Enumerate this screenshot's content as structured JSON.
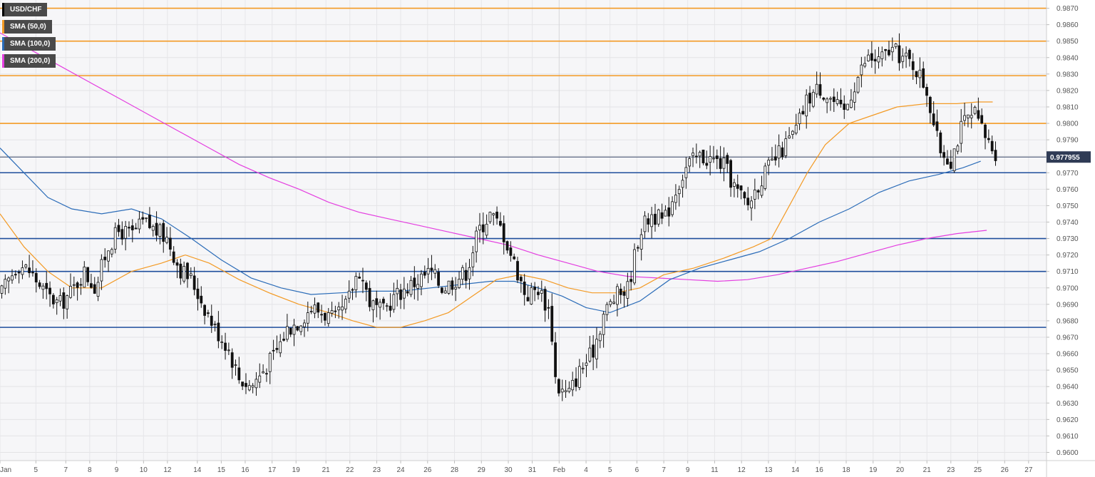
{
  "legend": {
    "items": [
      {
        "label": "USD/CHF",
        "color": "#000000"
      },
      {
        "label": "SMA (50,0)",
        "color": "#f39a24"
      },
      {
        "label": "SMA (100,0)",
        "color": "#2b6cb8"
      },
      {
        "label": "SMA (200,0)",
        "color": "#e43ee0"
      }
    ]
  },
  "chart_data": {
    "type": "candlestick",
    "symbol": "USD/CHF",
    "ylim": [
      0.9595,
      0.9875
    ],
    "y_ticks": [
      "0.9600",
      "0.9610",
      "0.9620",
      "0.9630",
      "0.9640",
      "0.9650",
      "0.9660",
      "0.9670",
      "0.9680",
      "0.9690",
      "0.9700",
      "0.9710",
      "0.9720",
      "0.9730",
      "0.9740",
      "0.9750",
      "0.9760",
      "0.9770",
      "0.9780",
      "0.9790",
      "0.9800",
      "0.9810",
      "0.9820",
      "0.9830",
      "0.9840",
      "0.9850",
      "0.9860",
      "0.9870"
    ],
    "x_ticks": [
      {
        "label": "Jan",
        "pos": 0
      },
      {
        "label": "5",
        "pos": 12
      },
      {
        "label": "7",
        "pos": 22
      },
      {
        "label": "8",
        "pos": 30
      },
      {
        "label": "9",
        "pos": 39
      },
      {
        "label": "10",
        "pos": 48
      },
      {
        "label": "12",
        "pos": 56
      },
      {
        "label": "14",
        "pos": 66
      },
      {
        "label": "15",
        "pos": 74
      },
      {
        "label": "16",
        "pos": 82
      },
      {
        "label": "17",
        "pos": 91
      },
      {
        "label": "19",
        "pos": 99
      },
      {
        "label": "21",
        "pos": 109
      },
      {
        "label": "22",
        "pos": 117
      },
      {
        "label": "23",
        "pos": 126
      },
      {
        "label": "24",
        "pos": 134
      },
      {
        "label": "26",
        "pos": 143
      },
      {
        "label": "28",
        "pos": 152
      },
      {
        "label": "29",
        "pos": 161
      },
      {
        "label": "30",
        "pos": 170
      },
      {
        "label": "31",
        "pos": 178
      },
      {
        "label": "Feb",
        "pos": 187
      },
      {
        "label": "4",
        "pos": 196
      },
      {
        "label": "5",
        "pos": 204
      },
      {
        "label": "6",
        "pos": 213
      },
      {
        "label": "7",
        "pos": 222
      },
      {
        "label": "9",
        "pos": 230
      },
      {
        "label": "11",
        "pos": 239
      },
      {
        "label": "12",
        "pos": 248
      },
      {
        "label": "13",
        "pos": 257
      },
      {
        "label": "14",
        "pos": 266
      },
      {
        "label": "16",
        "pos": 274
      },
      {
        "label": "18",
        "pos": 283
      },
      {
        "label": "19",
        "pos": 292
      },
      {
        "label": "20",
        "pos": 301
      },
      {
        "label": "21",
        "pos": 310
      },
      {
        "label": "23",
        "pos": 318
      },
      {
        "label": "25",
        "pos": 327
      },
      {
        "label": "26",
        "pos": 336
      },
      {
        "label": "27",
        "pos": 344
      }
    ],
    "x_max": 350,
    "current_price": 0.977955,
    "current_price_label": "0.977955",
    "levels": [
      {
        "value": 0.987,
        "color": "#f39a24"
      },
      {
        "value": 0.985,
        "color": "#f39a24"
      },
      {
        "value": 0.9829,
        "color": "#f39a24"
      },
      {
        "value": 0.98,
        "color": "#f39a24"
      },
      {
        "value": 0.977,
        "color": "#1f4e9c"
      },
      {
        "value": 0.973,
        "color": "#1f4e9c"
      },
      {
        "value": 0.971,
        "color": "#1f4e9c"
      },
      {
        "value": 0.9676,
        "color": "#1f4e9c"
      }
    ],
    "close_path": [
      [
        0,
        0.9695
      ],
      [
        6,
        0.9715
      ],
      [
        10,
        0.971
      ],
      [
        16,
        0.9695
      ],
      [
        20,
        0.969
      ],
      [
        24,
        0.9698
      ],
      [
        28,
        0.971
      ],
      [
        32,
        0.97
      ],
      [
        36,
        0.9725
      ],
      [
        40,
        0.9735
      ],
      [
        44,
        0.9732
      ],
      [
        48,
        0.974
      ],
      [
        52,
        0.9735
      ],
      [
        56,
        0.973
      ],
      [
        60,
        0.9712
      ],
      [
        64,
        0.9705
      ],
      [
        68,
        0.969
      ],
      [
        72,
        0.9675
      ],
      [
        76,
        0.9665
      ],
      [
        80,
        0.9645
      ],
      [
        84,
        0.964
      ],
      [
        88,
        0.965
      ],
      [
        92,
        0.966
      ],
      [
        96,
        0.9675
      ],
      [
        100,
        0.968
      ],
      [
        104,
        0.9688
      ],
      [
        108,
        0.9685
      ],
      [
        112,
        0.968
      ],
      [
        116,
        0.969
      ],
      [
        120,
        0.9712
      ],
      [
        124,
        0.969
      ],
      [
        128,
        0.9685
      ],
      [
        132,
        0.9695
      ],
      [
        136,
        0.97
      ],
      [
        140,
        0.9705
      ],
      [
        144,
        0.971
      ],
      [
        148,
        0.97
      ],
      [
        152,
        0.9705
      ],
      [
        156,
        0.971
      ],
      [
        160,
        0.9735
      ],
      [
        164,
        0.9745
      ],
      [
        168,
        0.9735
      ],
      [
        172,
        0.9715
      ],
      [
        176,
        0.9695
      ],
      [
        180,
        0.97
      ],
      [
        184,
        0.9685
      ],
      [
        186,
        0.964
      ],
      [
        190,
        0.9635
      ],
      [
        194,
        0.965
      ],
      [
        198,
        0.966
      ],
      [
        202,
        0.9685
      ],
      [
        206,
        0.9695
      ],
      [
        210,
        0.97
      ],
      [
        214,
        0.9735
      ],
      [
        218,
        0.9745
      ],
      [
        222,
        0.974
      ],
      [
        226,
        0.976
      ],
      [
        230,
        0.9775
      ],
      [
        234,
        0.978
      ],
      [
        238,
        0.9778
      ],
      [
        242,
        0.9775
      ],
      [
        246,
        0.976
      ],
      [
        250,
        0.975
      ],
      [
        254,
        0.9765
      ],
      [
        258,
        0.9775
      ],
      [
        262,
        0.9785
      ],
      [
        266,
        0.9795
      ],
      [
        270,
        0.9815
      ],
      [
        274,
        0.9822
      ],
      [
        278,
        0.9815
      ],
      [
        282,
        0.9805
      ],
      [
        286,
        0.9825
      ],
      [
        290,
        0.984
      ],
      [
        294,
        0.9838
      ],
      [
        298,
        0.9845
      ],
      [
        302,
        0.984
      ],
      [
        306,
        0.9835
      ],
      [
        310,
        0.982
      ],
      [
        314,
        0.9785
      ],
      [
        318,
        0.9778
      ],
      [
        322,
        0.98
      ],
      [
        326,
        0.9805
      ],
      [
        330,
        0.979
      ],
      [
        334,
        0.978
      ]
    ],
    "sma50": [
      [
        0,
        0.9745
      ],
      [
        8,
        0.9725
      ],
      [
        16,
        0.971
      ],
      [
        24,
        0.97
      ],
      [
        34,
        0.97
      ],
      [
        44,
        0.971
      ],
      [
        54,
        0.9715
      ],
      [
        62,
        0.972
      ],
      [
        70,
        0.9715
      ],
      [
        80,
        0.9705
      ],
      [
        90,
        0.9697
      ],
      [
        100,
        0.969
      ],
      [
        110,
        0.9685
      ],
      [
        118,
        0.968
      ],
      [
        126,
        0.9676
      ],
      [
        134,
        0.9676
      ],
      [
        142,
        0.968
      ],
      [
        150,
        0.9685
      ],
      [
        158,
        0.9695
      ],
      [
        166,
        0.9705
      ],
      [
        174,
        0.9708
      ],
      [
        182,
        0.9705
      ],
      [
        190,
        0.97
      ],
      [
        198,
        0.9697
      ],
      [
        206,
        0.9697
      ],
      [
        214,
        0.97
      ],
      [
        222,
        0.9708
      ],
      [
        232,
        0.9712
      ],
      [
        242,
        0.9718
      ],
      [
        252,
        0.9725
      ],
      [
        258,
        0.973
      ],
      [
        264,
        0.975
      ],
      [
        270,
        0.977
      ],
      [
        276,
        0.9787
      ],
      [
        284,
        0.98
      ],
      [
        292,
        0.9805
      ],
      [
        300,
        0.981
      ],
      [
        310,
        0.9812
      ],
      [
        320,
        0.9812
      ],
      [
        327,
        0.9813
      ],
      [
        332,
        0.9813
      ]
    ],
    "sma100": [
      [
        0,
        0.9785
      ],
      [
        8,
        0.977
      ],
      [
        16,
        0.9755
      ],
      [
        24,
        0.9748
      ],
      [
        34,
        0.9745
      ],
      [
        44,
        0.9748
      ],
      [
        54,
        0.9742
      ],
      [
        64,
        0.973
      ],
      [
        74,
        0.9717
      ],
      [
        84,
        0.9706
      ],
      [
        94,
        0.97
      ],
      [
        104,
        0.9696
      ],
      [
        114,
        0.9697
      ],
      [
        124,
        0.9698
      ],
      [
        134,
        0.9698
      ],
      [
        144,
        0.97
      ],
      [
        154,
        0.9702
      ],
      [
        164,
        0.9704
      ],
      [
        172,
        0.9704
      ],
      [
        180,
        0.97
      ],
      [
        188,
        0.9695
      ],
      [
        196,
        0.9688
      ],
      [
        204,
        0.9685
      ],
      [
        214,
        0.9692
      ],
      [
        224,
        0.9705
      ],
      [
        234,
        0.9712
      ],
      [
        244,
        0.9717
      ],
      [
        254,
        0.9722
      ],
      [
        264,
        0.973
      ],
      [
        274,
        0.974
      ],
      [
        284,
        0.9748
      ],
      [
        294,
        0.9758
      ],
      [
        304,
        0.9765
      ],
      [
        314,
        0.9769
      ],
      [
        322,
        0.9773
      ],
      [
        328,
        0.9777
      ]
    ],
    "sma200": [
      [
        0,
        0.9855
      ],
      [
        10,
        0.9845
      ],
      [
        20,
        0.9835
      ],
      [
        30,
        0.9825
      ],
      [
        40,
        0.9815
      ],
      [
        50,
        0.9805
      ],
      [
        60,
        0.9795
      ],
      [
        70,
        0.9785
      ],
      [
        80,
        0.9775
      ],
      [
        90,
        0.9767
      ],
      [
        100,
        0.976
      ],
      [
        110,
        0.9752
      ],
      [
        120,
        0.9746
      ],
      [
        130,
        0.9742
      ],
      [
        140,
        0.9738
      ],
      [
        150,
        0.9734
      ],
      [
        160,
        0.973
      ],
      [
        170,
        0.9726
      ],
      [
        180,
        0.972
      ],
      [
        190,
        0.9715
      ],
      [
        200,
        0.971
      ],
      [
        210,
        0.9707
      ],
      [
        220,
        0.9706
      ],
      [
        230,
        0.9705
      ],
      [
        240,
        0.9704
      ],
      [
        250,
        0.9705
      ],
      [
        260,
        0.9708
      ],
      [
        270,
        0.9712
      ],
      [
        280,
        0.9716
      ],
      [
        290,
        0.9721
      ],
      [
        300,
        0.9726
      ],
      [
        310,
        0.973
      ],
      [
        320,
        0.9733
      ],
      [
        330,
        0.9735
      ]
    ]
  }
}
